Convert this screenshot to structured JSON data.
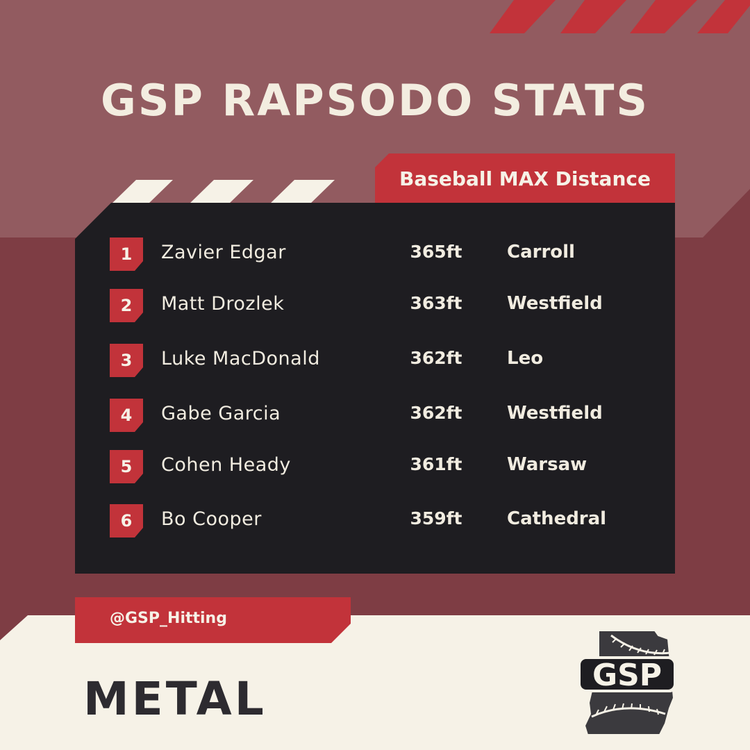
{
  "title": "GSP RAPSODO STATS",
  "category_label": "Baseball MAX Distance",
  "leaderboard": [
    {
      "rank": "1",
      "name": "Zavier Edgar",
      "distance": "365ft",
      "school": "Carroll"
    },
    {
      "rank": "2",
      "name": "Matt Drozlek",
      "distance": "363ft",
      "school": "Westfield"
    },
    {
      "rank": "3",
      "name": "Luke MacDonald",
      "distance": "362ft",
      "school": "Leo"
    },
    {
      "rank": "4",
      "name": "Gabe Garcia",
      "distance": "362ft",
      "school": "Westfield"
    },
    {
      "rank": "5",
      "name": "Cohen Heady",
      "distance": "361ft",
      "school": "Warsaw"
    },
    {
      "rank": "6",
      "name": "Bo Cooper",
      "distance": "359ft",
      "school": "Cathedral"
    }
  ],
  "handle": "@GSP_Hitting",
  "footer_label": "METAL",
  "logo": {
    "icon": "gsp-indiana-baseball-logo",
    "text": "GSP"
  },
  "colors": {
    "accent_red": "#c2333a",
    "panel_dark": "#1e1d21",
    "background_maroon": "#7e3d44",
    "background_rose": "#925b60",
    "cream": "#f6f2e7",
    "footer_text": "#2d2b30"
  }
}
